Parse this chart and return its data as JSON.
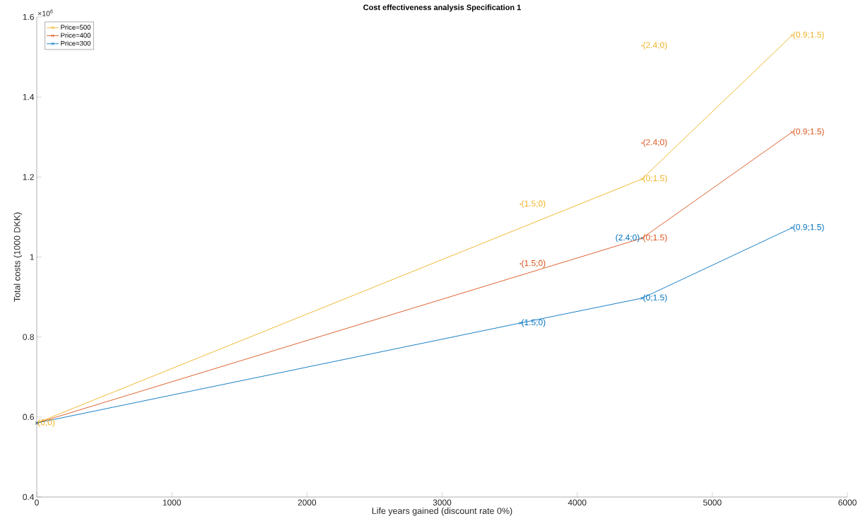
{
  "chart_data": {
    "type": "line",
    "title": "Cost effectiveness analysis Specification 1",
    "xlabel": "Life years gained (discount rate 0%)",
    "ylabel": "Total costs (1000 DKK)",
    "xlim": [
      0,
      6000
    ],
    "xticks": [
      0,
      1000,
      2000,
      3000,
      4000,
      5000,
      6000
    ],
    "ylim": [
      0.4,
      1.6
    ],
    "yticks": [
      0.4,
      0.6,
      0.8,
      1,
      1.2,
      1.4,
      1.6
    ],
    "annotations": [
      "×10$^{6}$"
    ],
    "legend": "top left",
    "grid": false,
    "marker": "cross",
    "line_style": "solid",
    "series": [
      {
        "name": "Price=500",
        "color": "#edb120",
        "x": [
          0,
          4480,
          5590
        ],
        "values": [
          0.585,
          1.195,
          1.554
        ],
        "value_labels": [
          "(0;0)",
          "(0;1.5)",
          "(0.9;1.5)"
        ]
      },
      {
        "name": "Price=400",
        "color": "#d95319",
        "x": [
          0,
          4480,
          5590
        ],
        "values": [
          0.585,
          1.047,
          1.312
        ],
        "value_labels": [
          null,
          "(0;1.5)",
          "(0.9;1.5)"
        ]
      },
      {
        "name": "Price=300",
        "color": "#0072bd",
        "x": [
          0,
          3580,
          4480,
          5590
        ],
        "values": [
          0.585,
          0.835,
          0.897,
          1.073
        ],
        "value_labels": [
          null,
          "(1.5;0)",
          "(0;1.5)",
          "(0.9;1.5)"
        ]
      },
      {
        "color": "#edb120",
        "type": "scatter",
        "marker": "circle",
        "x": [
          3580,
          4480
        ],
        "values": [
          1.132,
          1.528
        ],
        "value_labels": [
          "(1.5;0)",
          "(2.4;0)"
        ]
      },
      {
        "color": "#d95319",
        "type": "scatter",
        "marker": "circle",
        "x": [
          3580,
          4480
        ],
        "values": [
          0.983,
          1.285
        ],
        "value_labels": [
          "(1.5;0)",
          "(2.4;0)"
        ]
      },
      {
        "color": "#0072bd",
        "type": "scatter",
        "marker": "circle",
        "x": [
          4480
        ],
        "values": [
          1.047
        ],
        "value_labels": [
          "(2.4;0)"
        ]
      }
    ]
  }
}
